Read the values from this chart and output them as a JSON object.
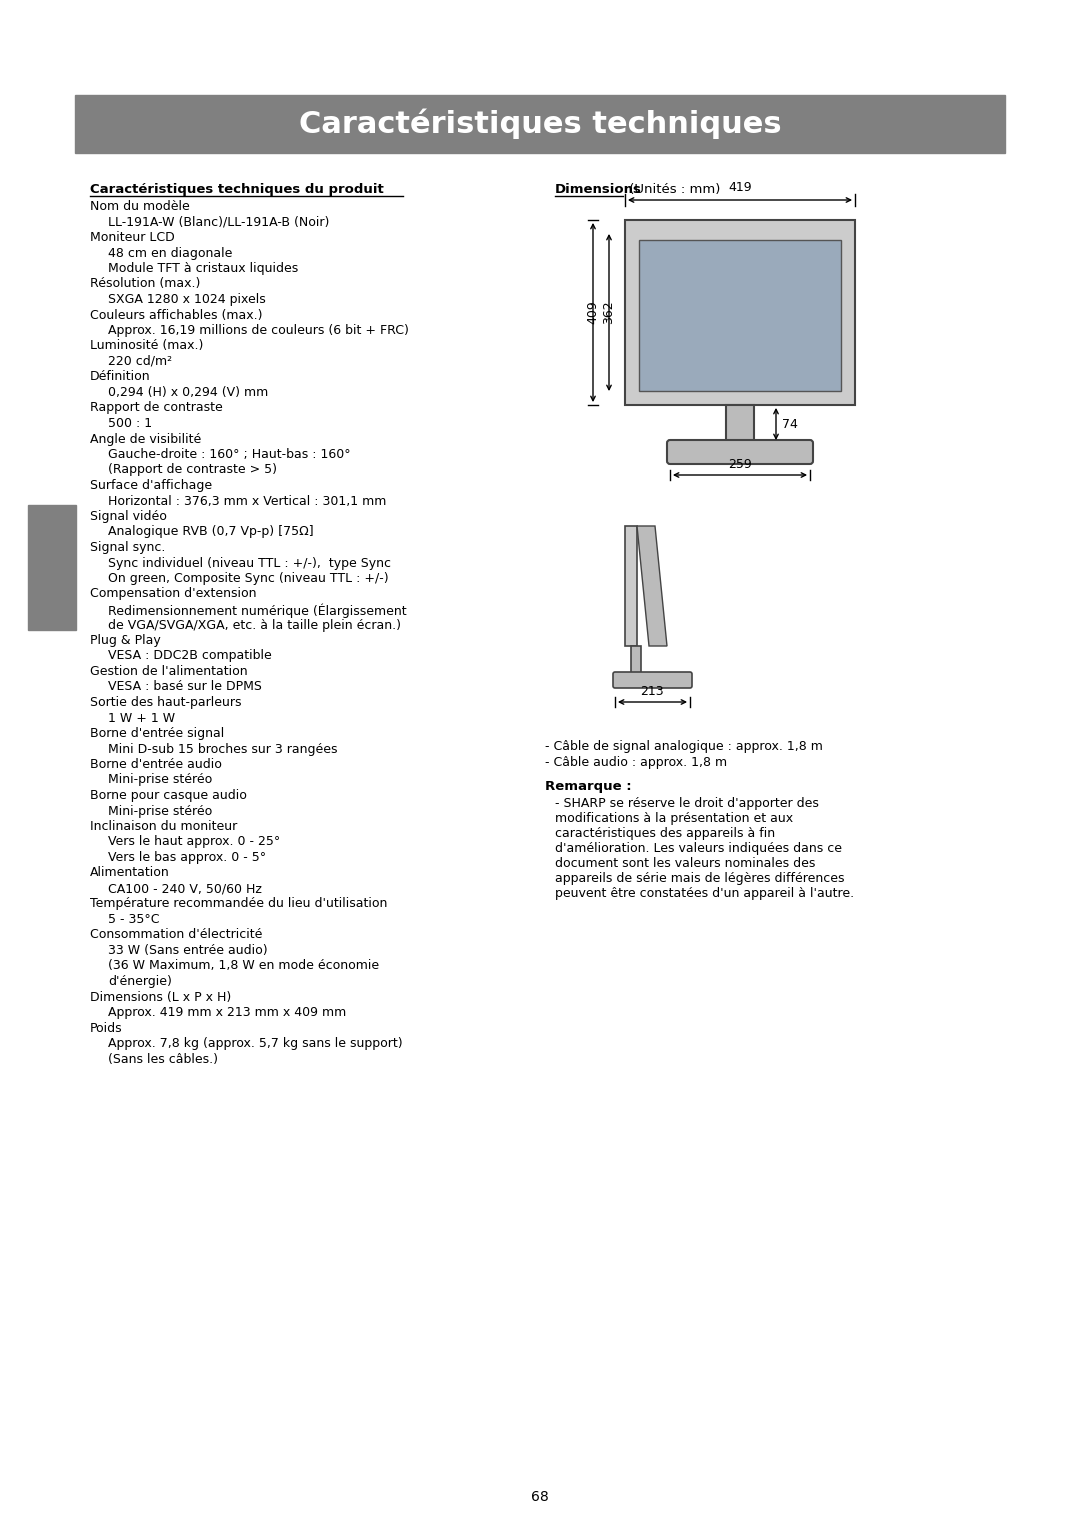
{
  "title": "Caractéristiques techniques",
  "title_bg_color": "#808080",
  "title_text_color": "#ffffff",
  "page_bg_color": "#ffffff",
  "left_section_title": "Caractéristiques techniques du produit",
  "right_section_title": "Dimensions",
  "right_section_title_suffix": " (Unités : mm)",
  "left_lines": [
    [
      "header",
      "Nom du modèle"
    ],
    [
      "indent",
      "LL-191A-W (Blanc)/LL-191A-B (Noir)"
    ],
    [
      "header",
      "Moniteur LCD"
    ],
    [
      "indent",
      "48 cm en diagonale"
    ],
    [
      "indent",
      "Module TFT à cristaux liquides"
    ],
    [
      "header",
      "Résolution (max.)"
    ],
    [
      "indent",
      "SXGA 1280 x 1024 pixels"
    ],
    [
      "header",
      "Couleurs affichables (max.)"
    ],
    [
      "indent",
      "Approx. 16,19 millions de couleurs (6 bit + FRC)"
    ],
    [
      "header",
      "Luminosité (max.)"
    ],
    [
      "indent",
      "220 cd/m²"
    ],
    [
      "header",
      "Définition"
    ],
    [
      "indent",
      "0,294 (H) x 0,294 (V) mm"
    ],
    [
      "header",
      "Rapport de contraste"
    ],
    [
      "indent",
      "500 : 1"
    ],
    [
      "header",
      "Angle de visibilité"
    ],
    [
      "indent",
      "Gauche-droite : 160° ; Haut-bas : 160°"
    ],
    [
      "indent",
      "(Rapport de contraste > 5)"
    ],
    [
      "header",
      "Surface d'affichage"
    ],
    [
      "indent",
      "Horizontal : 376,3 mm x Vertical : 301,1 mm"
    ],
    [
      "header",
      "Signal vidéo"
    ],
    [
      "indent",
      "Analogique RVB (0,7 Vp-p) [75Ω]"
    ],
    [
      "header",
      "Signal sync."
    ],
    [
      "indent",
      "Sync individuel (niveau TTL : +/-),  type Sync"
    ],
    [
      "indent",
      "On green, Composite Sync (niveau TTL : +/-)"
    ],
    [
      "header",
      "Compensation d'extension"
    ],
    [
      "indent",
      "Redimensionnement numérique (Élargissement"
    ],
    [
      "indent",
      "de VGA/SVGA/XGA, etc. à la taille plein écran.)"
    ],
    [
      "header",
      "Plug & Play"
    ],
    [
      "indent",
      "VESA : DDC2B compatible"
    ],
    [
      "header",
      "Gestion de l'alimentation"
    ],
    [
      "indent",
      "VESA : basé sur le DPMS"
    ],
    [
      "header",
      "Sortie des haut-parleurs"
    ],
    [
      "indent",
      "1 W + 1 W"
    ],
    [
      "header",
      "Borne d'entrée signal"
    ],
    [
      "indent",
      "Mini D-sub 15 broches sur 3 rangées"
    ],
    [
      "header",
      "Borne d'entrée audio"
    ],
    [
      "indent",
      "Mini-prise stéréo"
    ],
    [
      "header",
      "Borne pour casque audio"
    ],
    [
      "indent",
      "Mini-prise stéréo"
    ],
    [
      "header",
      "Inclinaison du moniteur"
    ],
    [
      "indent",
      "Vers le haut approx. 0 - 25°"
    ],
    [
      "indent",
      "Vers le bas approx. 0 - 5°"
    ],
    [
      "header",
      "Alimentation"
    ],
    [
      "indent",
      "CA100 - 240 V, 50/60 Hz"
    ],
    [
      "header",
      "Température recommandée du lieu d'utilisation"
    ],
    [
      "indent",
      "5 - 35°C"
    ],
    [
      "header",
      "Consommation d'électricité"
    ],
    [
      "indent",
      "33 W (Sans entrée audio)"
    ],
    [
      "indent",
      "(36 W Maximum, 1,8 W en mode économie"
    ],
    [
      "indent",
      "d'énergie)"
    ],
    [
      "header",
      "Dimensions (L x P x H)"
    ],
    [
      "indent",
      "Approx. 419 mm x 213 mm x 409 mm"
    ],
    [
      "header",
      "Poids"
    ],
    [
      "indent",
      "Approx. 7,8 kg (approx. 5,7 kg sans le support)"
    ],
    [
      "indent",
      "(Sans les câbles.)"
    ]
  ],
  "right_notes": [
    "- Câble de signal analogique : approx. 1,8 m",
    "- Câble audio : approx. 1,8 m"
  ],
  "remark_title": "Remarque :",
  "remark_lines": [
    "- SHARP se réserve le droit d'apporter des",
    "modifications à la présentation et aux",
    "caractéristiques des appareils à fin",
    "d'amélioration. Les valeurs indiquées dans ce",
    "document sont les valeurs nominales des",
    "appareils de série mais de légères différences",
    "peuvent être constatées d'un appareil à l'autre."
  ],
  "page_number": "68",
  "sidebar_color": "#808080"
}
